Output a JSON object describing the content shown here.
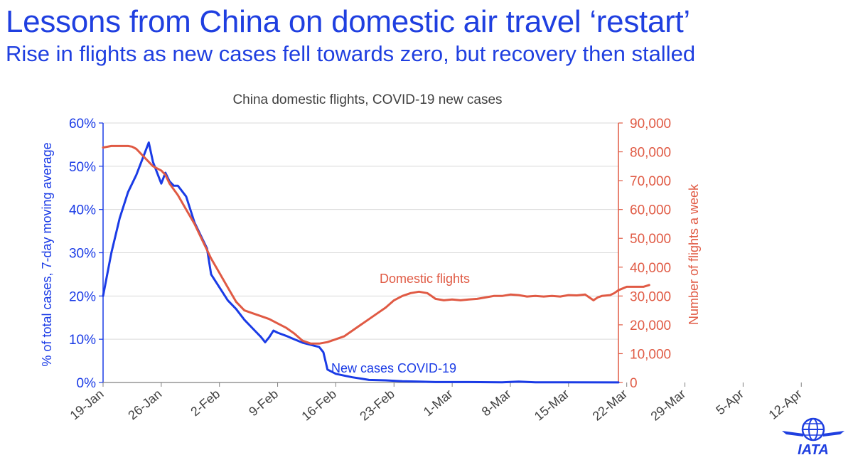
{
  "slide": {
    "title": "Lessons from China on domestic air travel ‘restart’",
    "subtitle": "Rise in flights as new cases fell towards zero, but recovery then stalled",
    "logo_text": "IATA"
  },
  "colors": {
    "title": "#1f3fe0",
    "cases": "#1a3be6",
    "flights": "#e05a44",
    "grid": "#d9d9d9"
  },
  "chart_data": {
    "type": "line",
    "title": "China domestic flights, COVID-19 new cases",
    "x_ticks": [
      "19-Jan",
      "26-Jan",
      "2-Feb",
      "9-Feb",
      "16-Feb",
      "23-Feb",
      "1-Mar",
      "8-Mar",
      "15-Mar",
      "22-Mar",
      "29-Mar",
      "5-Apr",
      "12-Apr"
    ],
    "x_range_days": [
      0,
      62
    ],
    "left_axis": {
      "label": "% of total cases, 7-day moving average",
      "range": [
        0,
        60
      ],
      "ticks": [
        "0%",
        "10%",
        "20%",
        "30%",
        "40%",
        "50%",
        "60%"
      ]
    },
    "right_axis": {
      "label": "Number of flights a week",
      "range": [
        0,
        90000
      ],
      "ticks": [
        "0",
        "10,000",
        "20,000",
        "30,000",
        "40,000",
        "50,000",
        "60,000",
        "70,000",
        "80,000",
        "90,000"
      ]
    },
    "grid": "horizontal",
    "series": [
      {
        "name": "New cases COVID-19",
        "axis": "left",
        "color": "#1a3be6",
        "points": [
          [
            0,
            20
          ],
          [
            1,
            30
          ],
          [
            2,
            38
          ],
          [
            3,
            44
          ],
          [
            4,
            48
          ],
          [
            5,
            53
          ],
          [
            5.5,
            55.5
          ],
          [
            6,
            51
          ],
          [
            7,
            46
          ],
          [
            7.5,
            48.5
          ],
          [
            8,
            46.5
          ],
          [
            8.5,
            45.5
          ],
          [
            9,
            45.5
          ],
          [
            10,
            43
          ],
          [
            11,
            37
          ],
          [
            12,
            33
          ],
          [
            12.5,
            31
          ],
          [
            13,
            25
          ],
          [
            14,
            22
          ],
          [
            15,
            19
          ],
          [
            16,
            17
          ],
          [
            17,
            14.5
          ],
          [
            18,
            12.5
          ],
          [
            19,
            10.5
          ],
          [
            19.5,
            9.3
          ],
          [
            20,
            10.5
          ],
          [
            20.5,
            12
          ],
          [
            21,
            11.5
          ],
          [
            22,
            10.8
          ],
          [
            23,
            10
          ],
          [
            24,
            9.2
          ],
          [
            25,
            8.7
          ],
          [
            26,
            8.2
          ],
          [
            26.5,
            7
          ],
          [
            27,
            3
          ],
          [
            28,
            2
          ],
          [
            29,
            1.6
          ],
          [
            30,
            1.2
          ],
          [
            31,
            0.9
          ],
          [
            32,
            0.6
          ],
          [
            34,
            0.5
          ],
          [
            36,
            0.3
          ],
          [
            38,
            0.2
          ],
          [
            40,
            0.1
          ],
          [
            44,
            0.1
          ],
          [
            48,
            0.05
          ],
          [
            50,
            0.2
          ],
          [
            52,
            0.05
          ],
          [
            56,
            0.05
          ],
          [
            62,
            0.02
          ]
        ]
      },
      {
        "name": "Domestic flights",
        "axis": "right",
        "color": "#e05a44",
        "points": [
          [
            0,
            81500
          ],
          [
            1,
            82000
          ],
          [
            2,
            82000
          ],
          [
            3,
            82000
          ],
          [
            3.5,
            81800
          ],
          [
            4,
            81000
          ],
          [
            5,
            78000
          ],
          [
            6,
            75000
          ],
          [
            7,
            73500
          ],
          [
            7.5,
            72000
          ],
          [
            8,
            69000
          ],
          [
            9,
            65000
          ],
          [
            10,
            60000
          ],
          [
            11,
            55000
          ],
          [
            12,
            49000
          ],
          [
            13,
            43000
          ],
          [
            14,
            38000
          ],
          [
            15,
            33000
          ],
          [
            16,
            28000
          ],
          [
            17,
            25000
          ],
          [
            18,
            24000
          ],
          [
            19,
            23000
          ],
          [
            20,
            22000
          ],
          [
            21,
            20500
          ],
          [
            22,
            19000
          ],
          [
            23,
            17000
          ],
          [
            24,
            14500
          ],
          [
            25,
            13500
          ],
          [
            26,
            13500
          ],
          [
            27,
            14000
          ],
          [
            28,
            15000
          ],
          [
            29,
            16000
          ],
          [
            30,
            18000
          ],
          [
            31,
            20000
          ],
          [
            32,
            22000
          ],
          [
            33,
            24000
          ],
          [
            34,
            26000
          ],
          [
            35,
            28500
          ],
          [
            36,
            30000
          ],
          [
            37,
            31000
          ],
          [
            38,
            31500
          ],
          [
            39,
            31000
          ],
          [
            39.5,
            30000
          ],
          [
            40,
            29000
          ],
          [
            41,
            28500
          ],
          [
            42,
            28800
          ],
          [
            43,
            28500
          ],
          [
            44,
            28800
          ],
          [
            45,
            29000
          ],
          [
            46,
            29500
          ],
          [
            47,
            30000
          ],
          [
            48,
            30000
          ],
          [
            49,
            30500
          ],
          [
            50,
            30300
          ],
          [
            51,
            29800
          ],
          [
            52,
            30000
          ],
          [
            53,
            29800
          ],
          [
            54,
            30000
          ],
          [
            55,
            29800
          ],
          [
            56,
            30300
          ],
          [
            57,
            30200
          ],
          [
            58,
            30500
          ],
          [
            58.5,
            29500
          ],
          [
            59,
            28500
          ],
          [
            59.5,
            29500
          ],
          [
            60,
            30000
          ],
          [
            61,
            30300
          ],
          [
            61.5,
            31000
          ],
          [
            62,
            32000
          ],
          [
            63,
            33200
          ],
          [
            64,
            33200
          ],
          [
            65,
            33200
          ],
          [
            65.7,
            33800
          ]
        ]
      }
    ],
    "annotations": [
      {
        "text": "Domestic flights",
        "series": "Domestic flights"
      },
      {
        "text": "New cases COVID-19",
        "series": "New cases COVID-19"
      }
    ]
  }
}
